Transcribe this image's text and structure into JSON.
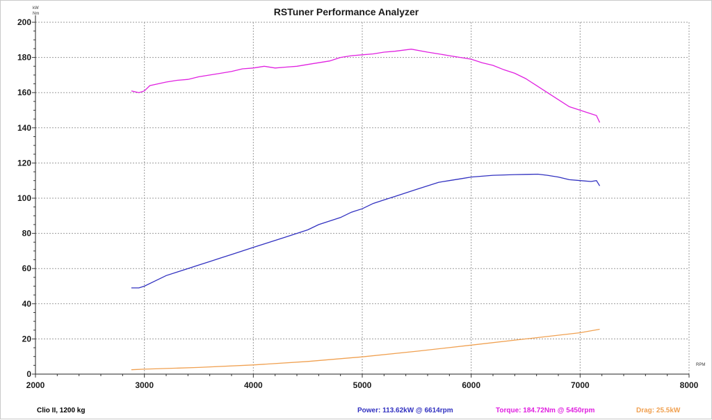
{
  "chart_data": {
    "type": "line",
    "title": "RSTuner Performance Analyzer",
    "y_unit_top": "kW",
    "y_unit_bottom": "Nm",
    "x_unit": "RPM",
    "xlim": [
      2000,
      8000
    ],
    "ylim": [
      0,
      200
    ],
    "x_ticks": [
      "2000",
      "3000",
      "4000",
      "5000",
      "6000",
      "7000",
      "8000"
    ],
    "y_ticks": [
      "0",
      "20",
      "40",
      "60",
      "80",
      "100",
      "120",
      "140",
      "160",
      "180",
      "200"
    ],
    "grid": true,
    "series": [
      {
        "key": "torque",
        "color": "#e020e0",
        "x": [
          2880,
          2950,
          3000,
          3050,
          3200,
          3300,
          3400,
          3500,
          3600,
          3700,
          3800,
          3900,
          4000,
          4100,
          4200,
          4300,
          4400,
          4500,
          4600,
          4700,
          4800,
          4900,
          5000,
          5100,
          5200,
          5300,
          5450,
          5600,
          5700,
          5800,
          5900,
          6000,
          6100,
          6200,
          6300,
          6400,
          6500,
          6600,
          6700,
          6800,
          6900,
          7000,
          7100,
          7150,
          7180
        ],
        "values": [
          161,
          160,
          161,
          164,
          166,
          167,
          167.5,
          169,
          170,
          171,
          172,
          173.5,
          174,
          175,
          174,
          174.5,
          175,
          176,
          177,
          178,
          180,
          181,
          181.5,
          182,
          183,
          183.5,
          184.7,
          183,
          182,
          181,
          180,
          179,
          177,
          175.5,
          173,
          171,
          168,
          164,
          160,
          156,
          152,
          150,
          148,
          147,
          143
        ]
      },
      {
        "key": "power",
        "color": "#3030c0",
        "x": [
          2880,
          2950,
          3000,
          3100,
          3200,
          3300,
          3400,
          3500,
          3600,
          3700,
          3800,
          3900,
          4000,
          4100,
          4200,
          4300,
          4400,
          4500,
          4600,
          4700,
          4800,
          4900,
          5000,
          5100,
          5200,
          5300,
          5400,
          5500,
          5600,
          5700,
          5800,
          5900,
          6000,
          6100,
          6200,
          6300,
          6400,
          6500,
          6614,
          6700,
          6800,
          6900,
          7000,
          7100,
          7150,
          7180
        ],
        "values": [
          49,
          49,
          50,
          53,
          56,
          58,
          60,
          62,
          64,
          66,
          68,
          70,
          72,
          74,
          76,
          78,
          80,
          82,
          85,
          87,
          89,
          92,
          94,
          97,
          99,
          101,
          103,
          105,
          107,
          109,
          110,
          111,
          112,
          112.5,
          113,
          113.2,
          113.4,
          113.5,
          113.62,
          113,
          112,
          110.5,
          110,
          109.5,
          110,
          107
        ]
      },
      {
        "key": "drag",
        "color": "#f0a050",
        "x": [
          2880,
          3000,
          3500,
          4000,
          4500,
          5000,
          5500,
          6000,
          6500,
          7000,
          7180
        ],
        "values": [
          2.5,
          2.8,
          3.8,
          5.2,
          7.2,
          9.8,
          13.0,
          16.5,
          20.0,
          23.5,
          25.5
        ]
      }
    ]
  },
  "footer": {
    "car": "Clio II, 1200 kg",
    "power_label": "Power: 113.62kW @ 6614rpm",
    "torque_label": "Torque: 184.72Nm @ 5450rpm",
    "drag_label": "Drag: 25.5kW",
    "power_color": "#3030c0",
    "torque_color": "#e020e0",
    "drag_color": "#f0a050"
  }
}
